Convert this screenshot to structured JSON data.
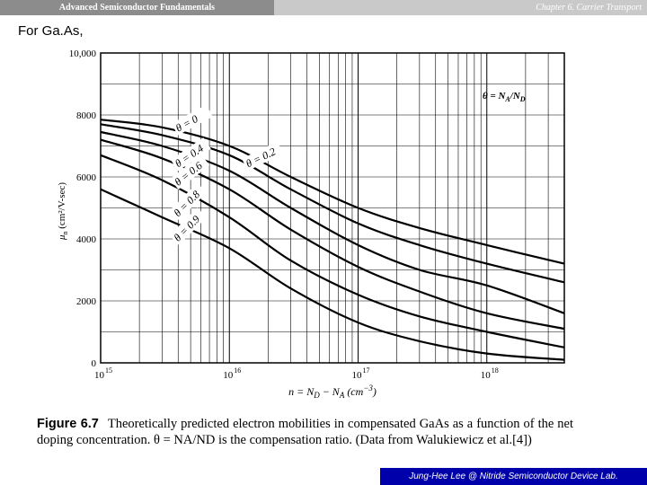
{
  "header": {
    "left_title": "Advanced Semiconductor Fundamentals",
    "right_title": "Chapter 6. Carrier Transport"
  },
  "intro_text": "For Ga.As,",
  "chart_data": {
    "type": "line",
    "x_scale": "log",
    "xlim": [
      1000000000000000.0,
      4e+18
    ],
    "ylim": [
      0,
      10000
    ],
    "y_ticks": [
      0,
      2000,
      4000,
      6000,
      8000,
      10000
    ],
    "y_tick_labels": [
      "0",
      "2000",
      "4000",
      "6000",
      "8000",
      "10,000"
    ],
    "x_ticks": [
      1000000000000000.0,
      1e+16,
      1e+17,
      1e+18
    ],
    "x_tick_base": "10",
    "x_tick_exponents": [
      "15",
      "16",
      "17",
      "18"
    ],
    "ylabel": {
      "mu": "μ",
      "sub": "n",
      "rest": " (cm²/V-sec)"
    },
    "xlabel": {
      "p1": "n = N",
      "s1": "D",
      "p2": " − N",
      "s2": "A",
      "p3": " (cm",
      "sup": "−3",
      "p4": ")"
    },
    "legend": {
      "text": "θ = N",
      "s1": "A",
      "mid": "/N",
      "s2": "D",
      "placement": "top-right"
    },
    "grid": true,
    "series": [
      {
        "name": "θ = 0",
        "x": [
          1000000000000000.0,
          3000000000000000.0,
          1e+16,
          3e+16,
          1e+17,
          3e+17,
          1e+18,
          4e+18
        ],
        "values": [
          7850,
          7600,
          7000,
          6000,
          5000,
          4350,
          3800,
          3200
        ]
      },
      {
        "name": "θ = 0.2",
        "x": [
          1000000000000000.0,
          3000000000000000.0,
          1e+16,
          3e+16,
          1e+17,
          3e+17,
          1e+18,
          4e+18
        ],
        "values": [
          7700,
          7350,
          6700,
          5600,
          4500,
          3800,
          3200,
          2600
        ]
      },
      {
        "name": "θ = 0.4",
        "x": [
          1000000000000000.0,
          3000000000000000.0,
          1e+16,
          3e+16,
          1e+17,
          3e+17,
          1e+18,
          4e+18
        ],
        "values": [
          7450,
          7000,
          6200,
          5000,
          3800,
          3000,
          2500,
          1600
        ]
      },
      {
        "name": "θ = 0.6",
        "x": [
          1000000000000000.0,
          3000000000000000.0,
          1e+16,
          3e+16,
          1e+17,
          3e+17,
          1e+18,
          4e+18
        ],
        "values": [
          7200,
          6600,
          5600,
          4300,
          3100,
          2300,
          1600,
          1100
        ]
      },
      {
        "name": "θ = 0.8",
        "x": [
          1000000000000000.0,
          3000000000000000.0,
          1e+16,
          3e+16,
          1e+17,
          3e+17,
          1e+18,
          4e+18
        ],
        "values": [
          6700,
          5900,
          4700,
          3300,
          2200,
          1500,
          1000,
          500
        ]
      },
      {
        "name": "θ = 0.9",
        "x": [
          1000000000000000.0,
          3000000000000000.0,
          1e+16,
          3e+16,
          1e+17,
          3e+17,
          1e+18,
          4e+18
        ],
        "values": [
          5600,
          4700,
          3700,
          2400,
          1300,
          700,
          300,
          100
        ]
      }
    ]
  },
  "caption": {
    "figure": "Figure 6.7",
    "text": "Theoretically predicted electron mobilities in compensated GaAs as a function of the net doping concentration. θ = NA/ND is the compensation ratio. (Data from Walukiewicz et al.[4])"
  },
  "footer": "Jung-Hee Lee @ Nitride Semiconductor Device Lab."
}
